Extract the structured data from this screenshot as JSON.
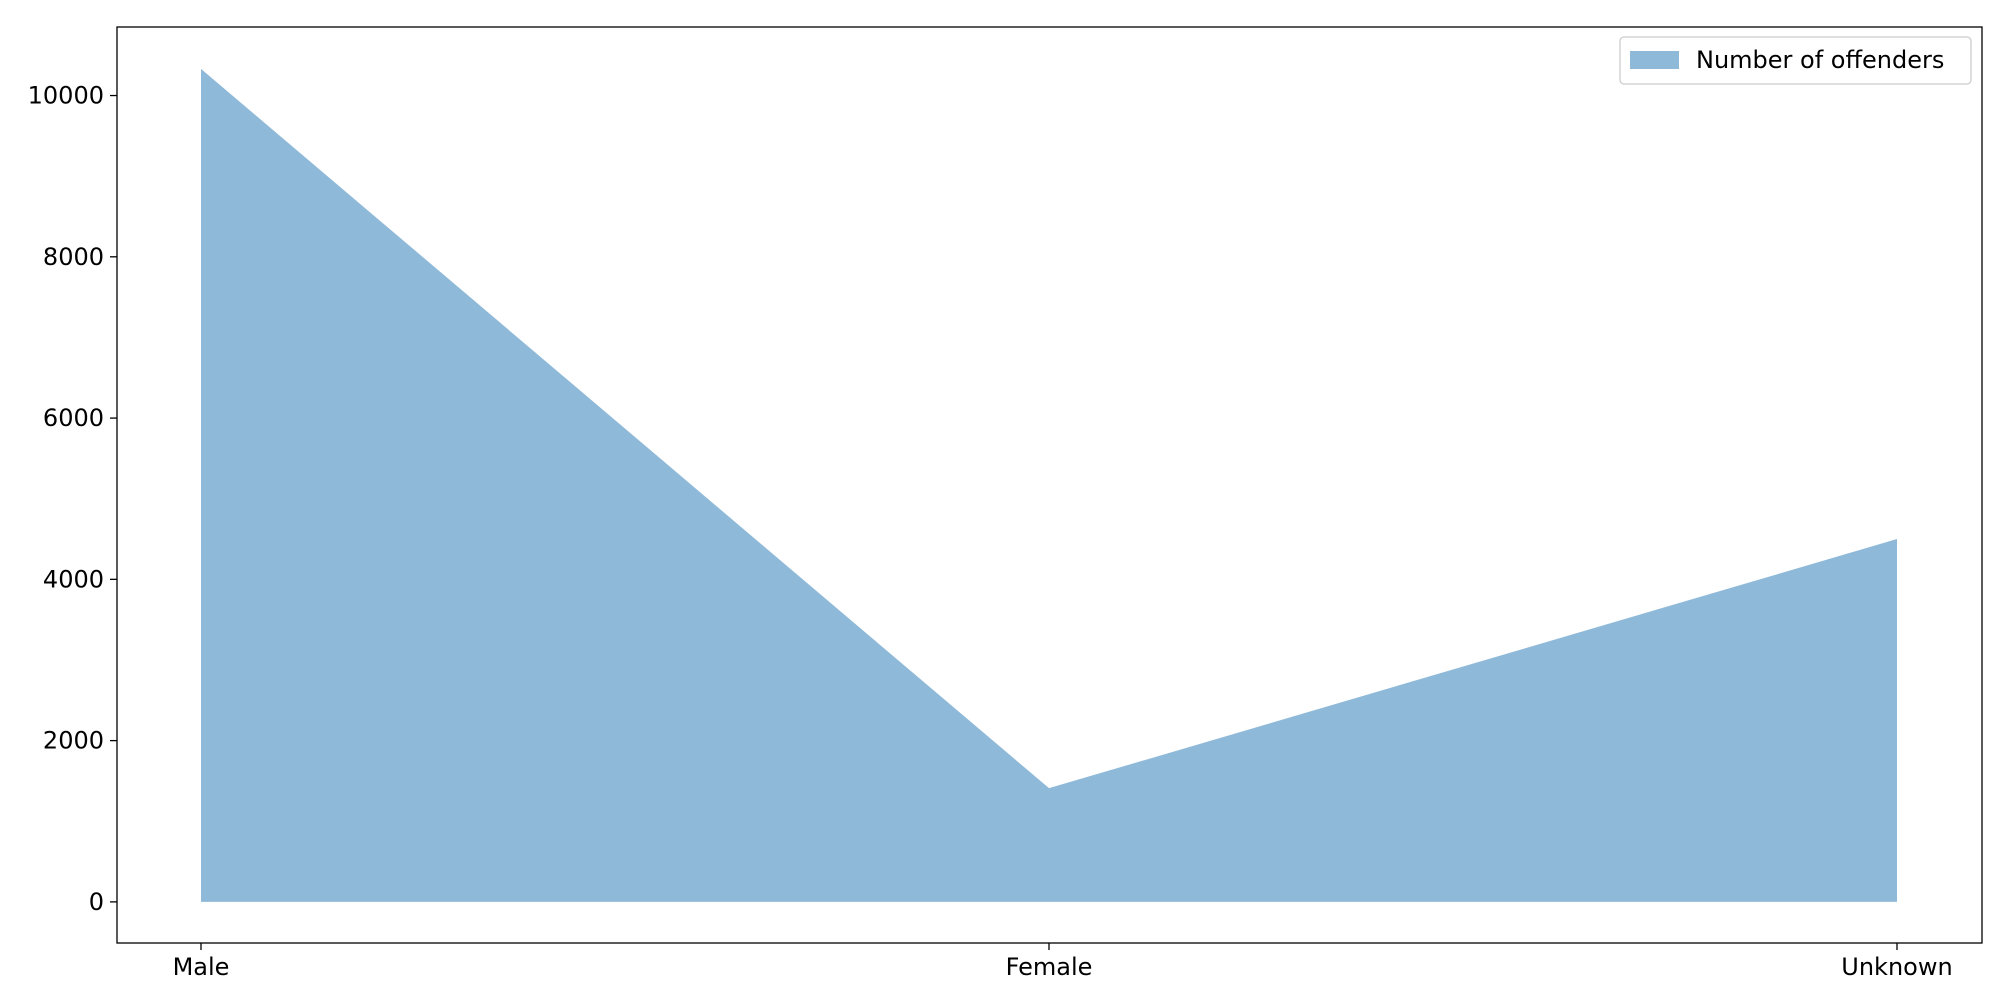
{
  "chart_data": {
    "type": "area",
    "categories": [
      "Male",
      "Female",
      "Unknown"
    ],
    "series": [
      {
        "name": "Number of offenders",
        "values": [
          10330,
          1410,
          4500
        ],
        "color": "#8fb9d9"
      }
    ],
    "title": "",
    "xlabel": "",
    "ylabel": "",
    "ylim": [
      -510,
      10850
    ],
    "yticks": [
      0,
      2000,
      4000,
      6000,
      8000,
      10000
    ],
    "ytick_labels": [
      "0",
      "2000",
      "4000",
      "6000",
      "8000",
      "10000"
    ],
    "grid": false,
    "legend_position": "top-right"
  }
}
